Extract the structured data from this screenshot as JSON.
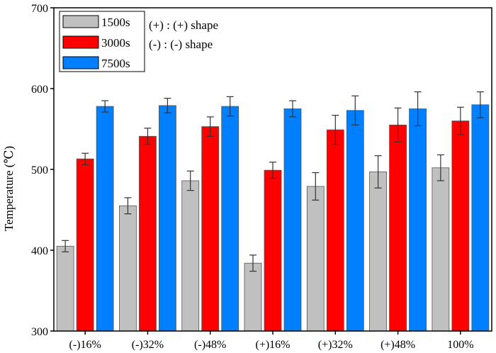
{
  "chart_data": {
    "type": "bar",
    "title": "",
    "xlabel": "",
    "ylabel": "Temperature (℃)",
    "ylim": [
      300,
      700
    ],
    "yticks": [
      300,
      400,
      500,
      600,
      700
    ],
    "categories": [
      "(-)16%",
      "(-)32%",
      "(-)48%",
      "(+)16%",
      "(+)32%",
      "(+)48%",
      "100%"
    ],
    "series": [
      {
        "name": "1500s",
        "color": "#c0c0c0",
        "values": [
          405,
          455,
          486,
          384,
          479,
          497,
          502
        ],
        "errors": [
          7,
          10,
          12,
          10,
          17,
          20,
          16
        ]
      },
      {
        "name": "3000s",
        "color": "#ff0000",
        "values": [
          513,
          541,
          553,
          499,
          549,
          555,
          560
        ],
        "errors": [
          7,
          10,
          12,
          10,
          18,
          21,
          17
        ]
      },
      {
        "name": "7500s",
        "color": "#0080ff",
        "values": [
          578,
          579,
          578,
          575,
          573,
          575,
          580
        ],
        "errors": [
          7,
          9,
          12,
          10,
          18,
          21,
          16
        ]
      }
    ],
    "legend_position": "top-left",
    "legend_notes": [
      "(+) : (+) shape",
      "(-) : (-) shape"
    ],
    "grid": false
  }
}
